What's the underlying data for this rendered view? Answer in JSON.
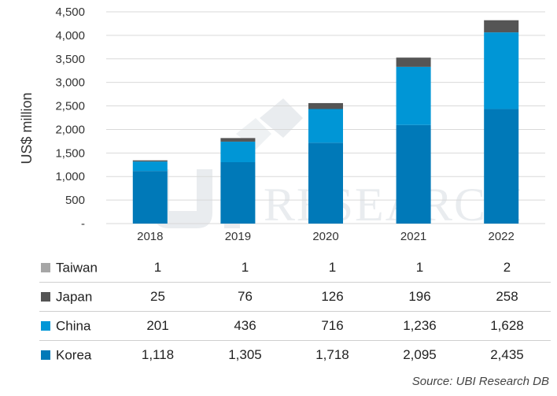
{
  "chart_data": {
    "type": "bar",
    "stacked": true,
    "ylabel": "US$ million",
    "ylim": [
      0,
      4500
    ],
    "yticks": [
      "-",
      "500",
      "1,000",
      "1,500",
      "2,000",
      "2,500",
      "3,000",
      "3,500",
      "4,000",
      "4,500"
    ],
    "categories": [
      "2018",
      "2019",
      "2020",
      "2021",
      "2022"
    ],
    "series": [
      {
        "name": "Korea",
        "color": "#0079b8",
        "values": [
          1118,
          1305,
          1718,
          2095,
          2435
        ],
        "labels": [
          "1,118",
          "1,305",
          "1,718",
          "2,095",
          "2,435"
        ]
      },
      {
        "name": "China",
        "color": "#0096d6",
        "values": [
          201,
          436,
          716,
          1236,
          1628
        ],
        "labels": [
          "201",
          "436",
          "716",
          "1,236",
          "1,628"
        ]
      },
      {
        "name": "Japan",
        "color": "#555555",
        "values": [
          25,
          76,
          126,
          196,
          258
        ],
        "labels": [
          "25",
          "76",
          "126",
          "196",
          "258"
        ]
      },
      {
        "name": "Taiwan",
        "color": "#a6a6a6",
        "values": [
          1,
          1,
          1,
          1,
          2
        ],
        "labels": [
          "1",
          "1",
          "1",
          "1",
          "2"
        ]
      }
    ],
    "gridlines": true
  },
  "watermark": "RESEARCH",
  "source": "Source: UBI Research DB"
}
